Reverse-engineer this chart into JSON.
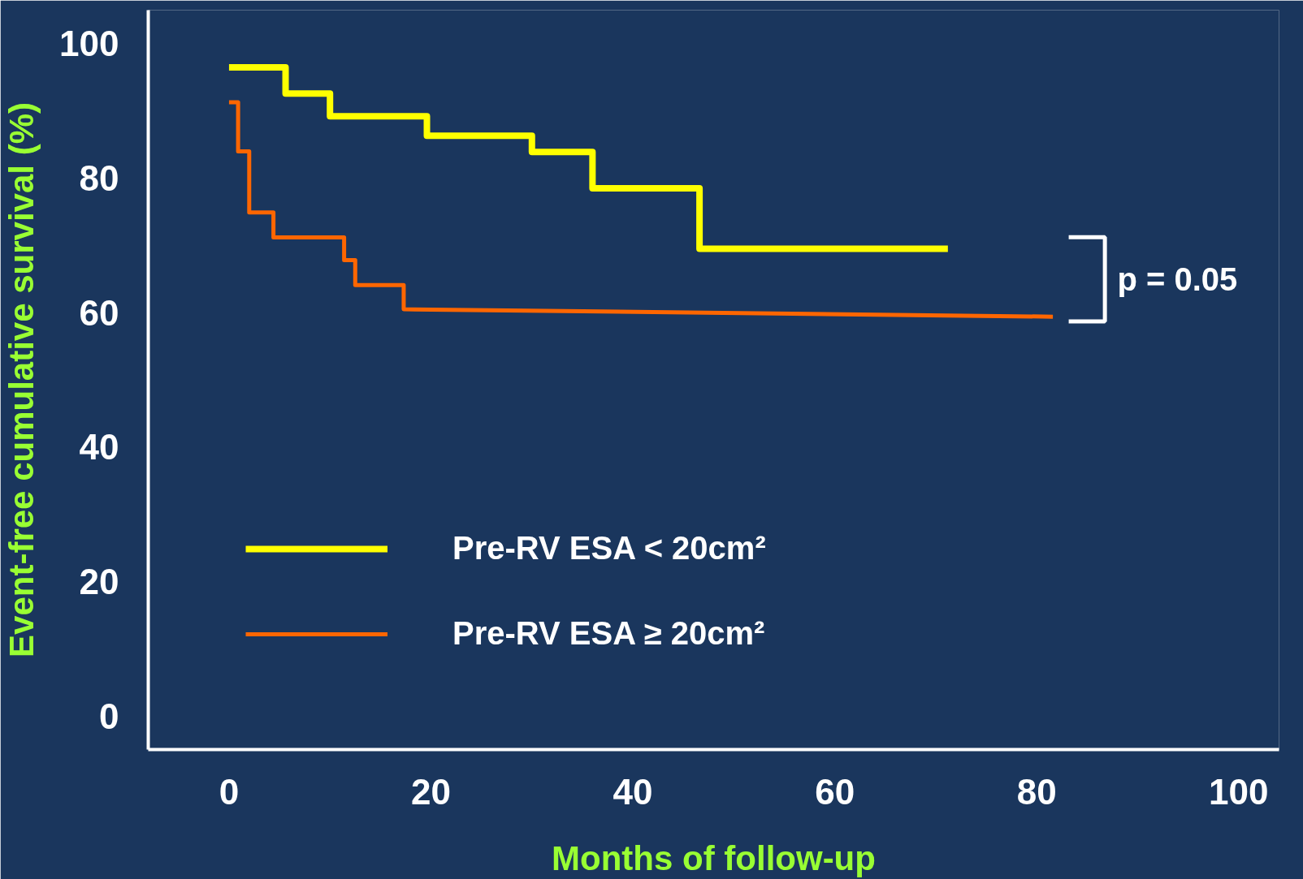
{
  "chart_data": {
    "type": "line",
    "xlabel": "Months of follow-up",
    "ylabel": "Event-free cumulative survival (%)",
    "xlim": [
      -8,
      104
    ],
    "xticks": [
      0,
      20,
      40,
      60,
      80,
      100
    ],
    "ylim": [
      -5,
      105
    ],
    "yticks": [
      0,
      20,
      40,
      60,
      80,
      100
    ],
    "grid": false,
    "legend": "bottom left",
    "series": [
      {
        "name": "Pre-RV ESA < 20cm²",
        "color": "#ffff00",
        "x": [
          0,
          5.6,
          5.6,
          10,
          10,
          19.6,
          19.6,
          30,
          30,
          36,
          36,
          46.6,
          46.6,
          71.2
        ],
        "values": [
          96.5,
          96.5,
          92.6,
          92.6,
          89.2,
          89.2,
          86.3,
          86.3,
          83.9,
          83.9,
          78.5,
          78.5,
          69.5,
          69.5
        ]
      },
      {
        "name": "Pre-RV ESA ≥ 20cm²",
        "color": "#ff6600",
        "x": [
          0,
          0.9,
          0.9,
          2,
          2,
          4.4,
          4.4,
          11.4,
          11.4,
          12.5,
          12.5,
          17.3,
          17.3,
          81.6
        ],
        "values": [
          91.3,
          91.3,
          84,
          84,
          74.9,
          74.9,
          71.2,
          71.2,
          67.8,
          67.8,
          64.1,
          64.1,
          60.5,
          59.4
        ]
      }
    ],
    "annotations": [
      "p = 0.05"
    ]
  }
}
